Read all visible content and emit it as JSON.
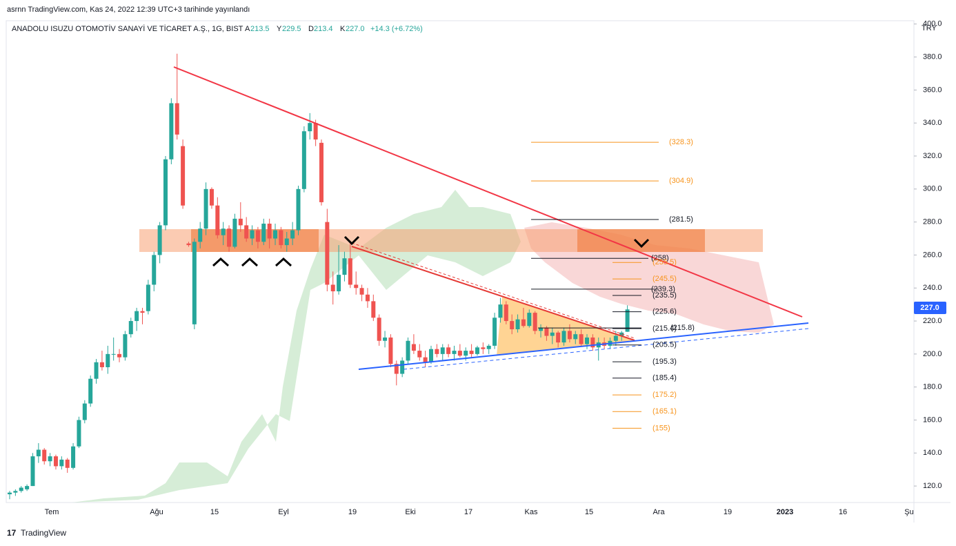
{
  "published": "asrnn TradingView.com, Kas 24, 2022 12:39 UTC+3 tarihinde yayınlandı",
  "chart_data": {
    "type": "candlestick",
    "title": "ANADOLU ISUZU OTOMOTİV SANAYİ VE TİCARET A.Ş., 1G, BIST",
    "legend_values": [
      {
        "label": "A",
        "value": "213.5"
      },
      {
        "label": "Y",
        "value": "229.5"
      },
      {
        "label": "D",
        "value": "213.4"
      },
      {
        "label": "K",
        "value": "227.0"
      }
    ],
    "change": "+14.3 (+6.72%)",
    "currency": "TRY",
    "last_price_label": "227.0",
    "up_color": "#26a69a",
    "down_color": "#ef5350",
    "x_labels": [
      "Tem",
      "Ağu",
      "15",
      "Eyl",
      "19",
      "Eki",
      "17",
      "Kas",
      "15",
      "Ara",
      "19",
      "2023",
      "16",
      "Şu"
    ],
    "ylim": [
      110,
      402
    ],
    "yticks": [
      {
        "value": 120,
        "label": "120.0"
      },
      {
        "value": 140,
        "label": "140.0"
      },
      {
        "value": 160,
        "label": "160.0"
      },
      {
        "value": 180,
        "label": "180.0"
      },
      {
        "value": 200,
        "label": "200.0"
      },
      {
        "value": 220,
        "label": "220.0"
      },
      {
        "value": 240,
        "label": "240.0"
      },
      {
        "value": 260,
        "label": "260.0"
      },
      {
        "value": 280,
        "label": "280.0"
      },
      {
        "value": 300,
        "label": "300.0"
      },
      {
        "value": 320,
        "label": "320.0"
      },
      {
        "value": 340,
        "label": "340.0"
      },
      {
        "value": 360,
        "label": "360.0"
      },
      {
        "value": 380,
        "label": "380.0"
      },
      {
        "value": 400,
        "label": "400.0"
      }
    ],
    "ohlc": [
      [
        115,
        117,
        112,
        116
      ],
      [
        116,
        118,
        114,
        117
      ],
      [
        117,
        120,
        116,
        119
      ],
      [
        118,
        121,
        117,
        120
      ],
      [
        120,
        140,
        120,
        138
      ],
      [
        138,
        146,
        134,
        142
      ],
      [
        142,
        143,
        133,
        135
      ],
      [
        135,
        140,
        132,
        138
      ],
      [
        138,
        139,
        130,
        132
      ],
      [
        132,
        138,
        130,
        136
      ],
      [
        136,
        137,
        128,
        131
      ],
      [
        131,
        146,
        130,
        144
      ],
      [
        144,
        162,
        143,
        160
      ],
      [
        160,
        172,
        158,
        170
      ],
      [
        170,
        187,
        168,
        185
      ],
      [
        185,
        197,
        182,
        195
      ],
      [
        195,
        202,
        190,
        192
      ],
      [
        192,
        205,
        188,
        200
      ],
      [
        200,
        210,
        196,
        200
      ],
      [
        200,
        203,
        195,
        198
      ],
      [
        198,
        214,
        196,
        212
      ],
      [
        212,
        222,
        210,
        220
      ],
      [
        220,
        228,
        214,
        226
      ],
      [
        226,
        228,
        218,
        225
      ],
      [
        226,
        245,
        224,
        242
      ],
      [
        242,
        262,
        238,
        260
      ],
      [
        260,
        280,
        255,
        278
      ],
      [
        278,
        320,
        275,
        318
      ],
      [
        318,
        355,
        315,
        352
      ],
      [
        352,
        382,
        330,
        333
      ],
      [
        326,
        330,
        288,
        290
      ],
      [
        267,
        268,
        265,
        266
      ],
      [
        218,
        270,
        215,
        268
      ],
      [
        268,
        280,
        264,
        276
      ],
      [
        276,
        304,
        272,
        300
      ],
      [
        300,
        301,
        288,
        290
      ],
      [
        290,
        295,
        270,
        272
      ],
      [
        272,
        280,
        266,
        276
      ],
      [
        276,
        278,
        262,
        265
      ],
      [
        265,
        285,
        264,
        282
      ],
      [
        282,
        292,
        274,
        278
      ],
      [
        278,
        283,
        268,
        270
      ],
      [
        270,
        278,
        266,
        275
      ],
      [
        275,
        277,
        264,
        268
      ],
      [
        268,
        282,
        266,
        279
      ],
      [
        279,
        282,
        264,
        270
      ],
      [
        270,
        279,
        266,
        275
      ],
      [
        275,
        277,
        264,
        266
      ],
      [
        266,
        274,
        262,
        270
      ],
      [
        270,
        280,
        266,
        275
      ],
      [
        275,
        302,
        272,
        300
      ],
      [
        300,
        338,
        298,
        335
      ],
      [
        335,
        346,
        330,
        340
      ],
      [
        340,
        342,
        326,
        330
      ],
      [
        328,
        330,
        290,
        292
      ],
      [
        280,
        288,
        238,
        242
      ],
      [
        242,
        250,
        230,
        238
      ],
      [
        238,
        266,
        236,
        248
      ],
      [
        248,
        262,
        244,
        258
      ],
      [
        258,
        268,
        240,
        242
      ],
      [
        242,
        250,
        236,
        240
      ],
      [
        240,
        242,
        232,
        236
      ],
      [
        236,
        240,
        228,
        232
      ],
      [
        232,
        236,
        220,
        222
      ],
      [
        222,
        224,
        205,
        208
      ],
      [
        208,
        214,
        204,
        210
      ],
      [
        210,
        212,
        192,
        194
      ],
      [
        194,
        196,
        181,
        188
      ],
      [
        188,
        198,
        186,
        196
      ],
      [
        196,
        210,
        194,
        208
      ],
      [
        206,
        212,
        200,
        202
      ],
      [
        202,
        206,
        196,
        198
      ],
      [
        198,
        202,
        192,
        195
      ],
      [
        195,
        205,
        194,
        203
      ],
      [
        203,
        206,
        198,
        200
      ],
      [
        200,
        206,
        196,
        204
      ],
      [
        204,
        206,
        198,
        200
      ],
      [
        200,
        205,
        196,
        202
      ],
      [
        202,
        206,
        198,
        199
      ],
      [
        199,
        204,
        196,
        202
      ],
      [
        202,
        206,
        198,
        200
      ],
      [
        200,
        205,
        199,
        204
      ],
      [
        204,
        207,
        200,
        203
      ],
      [
        203,
        206,
        200,
        205
      ],
      [
        205,
        225,
        203,
        222
      ],
      [
        222,
        234,
        219,
        230
      ],
      [
        230,
        232,
        218,
        220
      ],
      [
        220,
        224,
        212,
        215
      ],
      [
        215,
        224,
        213,
        221
      ],
      [
        221,
        228,
        216,
        217
      ],
      [
        217,
        227,
        216,
        225
      ],
      [
        225,
        226,
        212,
        214
      ],
      [
        214,
        218,
        210,
        216
      ],
      [
        216,
        217,
        208,
        211
      ],
      [
        211,
        216,
        206,
        213
      ],
      [
        213,
        214,
        204,
        207
      ],
      [
        207,
        216,
        205,
        214
      ],
      [
        214,
        218,
        207,
        209
      ],
      [
        209,
        214,
        206,
        212
      ],
      [
        212,
        215,
        205,
        206
      ],
      [
        206,
        212,
        203,
        210
      ],
      [
        210,
        212,
        202,
        204
      ],
      [
        204,
        210,
        196,
        207
      ],
      [
        207,
        210,
        203,
        205
      ],
      [
        205,
        210,
        203,
        208
      ],
      [
        208,
        214,
        205,
        211
      ],
      [
        211,
        214,
        208,
        213
      ],
      [
        213.5,
        229.5,
        213.4,
        227
      ]
    ],
    "levels": [
      {
        "value": 328.3,
        "label": "(328.3)",
        "color": "#f7931a"
      },
      {
        "value": 304.9,
        "label": "(304.9)",
        "color": "#f7931a"
      },
      {
        "value": 281.5,
        "label": "(281.5)",
        "color": "#131722"
      },
      {
        "value": 258,
        "label": "(258)",
        "color": "#131722"
      },
      {
        "value": 255.5,
        "label": "(255.5)",
        "color": "#f7931a"
      },
      {
        "value": 245.5,
        "label": "(245.5)",
        "color": "#f7931a"
      },
      {
        "value": 239.3,
        "label": "(239.3)",
        "color": "#131722"
      },
      {
        "value": 235.5,
        "label": "(235.5)",
        "color": "#131722"
      },
      {
        "value": 225.6,
        "label": "(225.6)",
        "color": "#131722"
      },
      {
        "value": 215.8,
        "label": "(215.8)",
        "color": "#131722"
      },
      {
        "value": 215.4,
        "label": "(215.4)",
        "color": "#131722"
      },
      {
        "value": 205.5,
        "label": "(205.5)",
        "color": "#131722"
      },
      {
        "value": 195.3,
        "label": "(195.3)",
        "color": "#131722"
      },
      {
        "value": 185.4,
        "label": "(185.4)",
        "color": "#131722"
      },
      {
        "value": 175.2,
        "label": "(175.2)",
        "color": "#f7931a"
      },
      {
        "value": 165.1,
        "label": "(165.1)",
        "color": "#f7931a"
      },
      {
        "value": 155,
        "label": "(155)",
        "color": "#f7931a"
      }
    ]
  },
  "footer": "TradingView"
}
